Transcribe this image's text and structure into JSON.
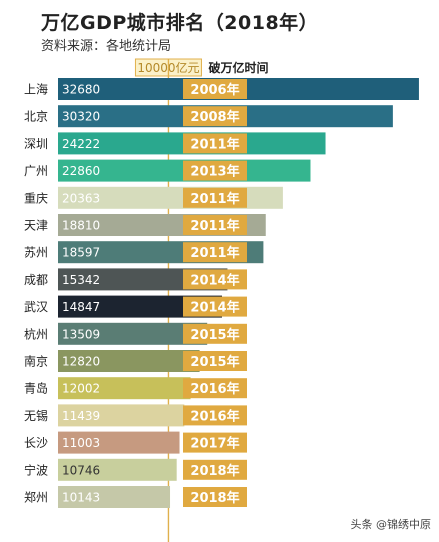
{
  "header": {
    "title": "万亿GDP城市排名（2018年）",
    "subtitle": "资料来源：各地统计局"
  },
  "watermark": "头条 @锦绣中原",
  "chart_data": {
    "type": "bar",
    "orientation": "horizontal",
    "title": "万亿GDP城市排名（2018年）",
    "reference_line": {
      "value": 10000,
      "label": "10000亿元"
    },
    "time_column_label": "破万亿时间",
    "unit": "亿元",
    "categories": [
      "上海",
      "北京",
      "深圳",
      "广州",
      "重庆",
      "天津",
      "苏州",
      "成都",
      "武汉",
      "杭州",
      "南京",
      "青岛",
      "无锡",
      "长沙",
      "宁波",
      "郑州"
    ],
    "values": [
      32680,
      30320,
      24222,
      22860,
      20363,
      18810,
      18597,
      15342,
      14847,
      13509,
      12820,
      12002,
      11439,
      11003,
      10746,
      10143
    ],
    "years": [
      "2006年",
      "2008年",
      "2011年",
      "2013年",
      "2011年",
      "2011年",
      "2011年",
      "2014年",
      "2014年",
      "2015年",
      "2015年",
      "2016年",
      "2016年",
      "2017年",
      "2018年",
      "2018年"
    ],
    "colors": [
      "#1f5f7a",
      "#2a6f86",
      "#2aa88e",
      "#35b58f",
      "#d6dcbc",
      "#a5aa95",
      "#4e7c78",
      "#4e5555",
      "#1c2430",
      "#5a7d74",
      "#8a9660",
      "#c7c05a",
      "#dcd3a0",
      "#c69a80",
      "#c8cf9d",
      "#c5c8a8"
    ],
    "text_colors": [
      "#ffffff",
      "#ffffff",
      "#ffffff",
      "#ffffff",
      "#ffffff",
      "#ffffff",
      "#ffffff",
      "#ffffff",
      "#ffffff",
      "#ffffff",
      "#ffffff",
      "#ffffff",
      "#ffffff",
      "#ffffff",
      "#333333",
      "#ffffff"
    ],
    "year_box_color": "#e0a940",
    "xlim": [
      0,
      33500
    ]
  }
}
